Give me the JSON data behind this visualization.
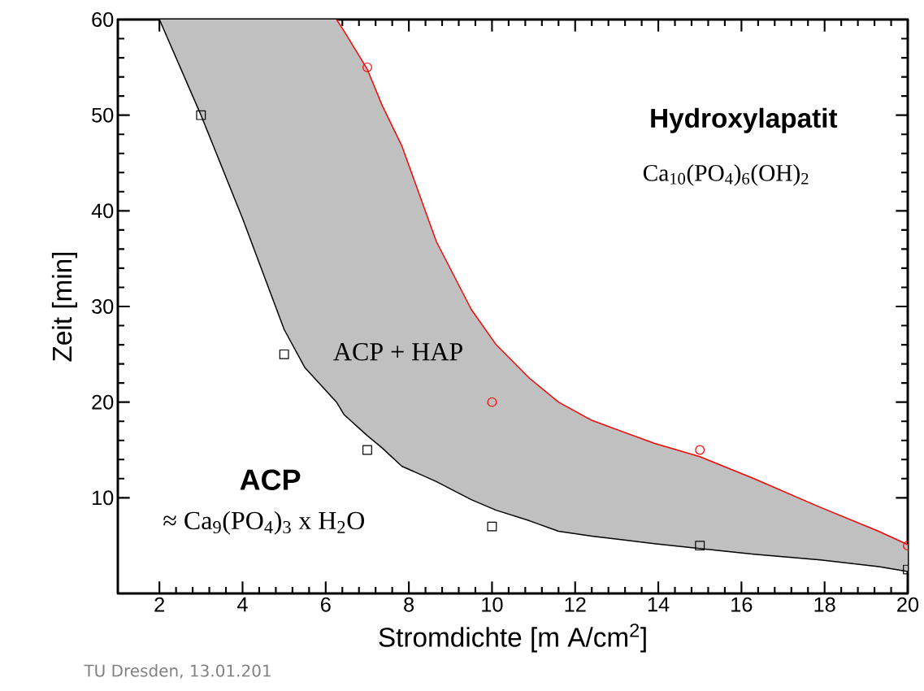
{
  "chart_data": {
    "type": "line",
    "xlabel": "Stromdichte [m A/cm$^{2}$]",
    "ylabel": "Zeit [min]",
    "xlim": [
      1,
      20
    ],
    "ylim": [
      0,
      60
    ],
    "xticks": [
      2,
      4,
      6,
      8,
      10,
      12,
      14,
      16,
      18,
      20
    ],
    "yticks": [
      10,
      20,
      30,
      40,
      50,
      60
    ],
    "series": [
      {
        "color": "#000000",
        "marker": "none",
        "x": [
          2,
          3,
          4,
          5,
          5.5,
          6.26,
          6.44,
          7,
          7.36,
          7.83,
          8.66,
          9.5,
          10.1,
          10.9,
          11.6,
          12.4,
          13.9,
          15,
          16.3,
          17.9,
          19.3,
          20
        ],
        "values": [
          60,
          50,
          39.2,
          27.6,
          23.6,
          20,
          18.7,
          16.5,
          15.2,
          13.3,
          11.7,
          9.8,
          8.7,
          7.6,
          6.5,
          6,
          5.2,
          4.7,
          4.1,
          3.5,
          2.8,
          2.3
        ],
        "lower": [
          60,
          50,
          39.2,
          27.6,
          23.6,
          20,
          18.7,
          16.5,
          15.2,
          13.3,
          11.7,
          9.8,
          8.7,
          7.6,
          6.5,
          6,
          5.2,
          4.7,
          4.1,
          3.5,
          2.8,
          2.3
        ],
        "upper": [
          60,
          60,
          60,
          60,
          60,
          60,
          58.8,
          54.8,
          51,
          46.8,
          36.8,
          29.7,
          26,
          22.5,
          20,
          18.1,
          15.7,
          14.3,
          12,
          9,
          6.5,
          5.1
        ]
      },
      {
        "color": "#ff0000",
        "marker": "none",
        "x": [
          6.26,
          6.44,
          7,
          7.36,
          7.83,
          8.66,
          9.5,
          10.1,
          10.9,
          11.6,
          12.4,
          13.9,
          15,
          16.3,
          17.9,
          19.3,
          20
        ],
        "values": [
          60,
          58.8,
          54.8,
          51,
          46.8,
          36.8,
          29.7,
          26,
          22.5,
          20,
          18.1,
          15.7,
          14.3,
          12,
          9,
          6.5,
          5.1
        ]
      },
      {
        "type": "scatter",
        "color": "#000000",
        "marker": "square",
        "x": [
          3,
          5,
          7,
          10,
          15,
          20
        ],
        "values": [
          50,
          25,
          15,
          7,
          5,
          2.5
        ]
      },
      {
        "type": "scatter",
        "color": "#ff0000",
        "marker": "circle",
        "x": [
          7,
          10,
          15,
          20
        ],
        "values": [
          55,
          20,
          15,
          5
        ]
      }
    ],
    "annotations": [
      "Hydroxylapatit",
      "Ca$_{10}$(PO$_{4}$)$_{6}$(OH)$_{2}$",
      "ACP + HAP",
      "ACP",
      "≈ Ca$_{9}$(PO$_{4}$)$_{3}$ x H$_{2}$O",
      "TU Dresden, 13.01.201"
    ]
  }
}
